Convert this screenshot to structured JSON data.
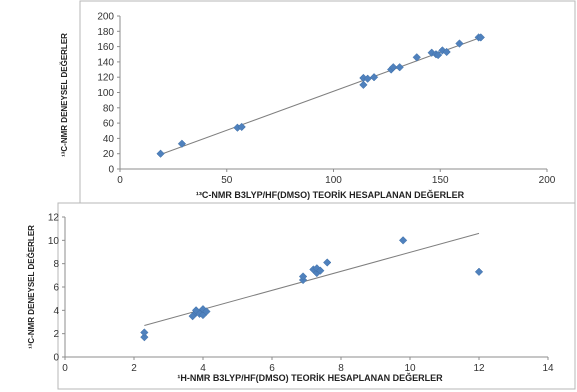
{
  "chart_data": [
    {
      "type": "scatter",
      "title": "",
      "xlabel": "¹³C-NMR B3LYP/HF(DMSO) TEORİK HESAPLANAN DEĞERLER",
      "ylabel": "¹³C-NMR DENEYSEL DEĞERLER",
      "xlim": [
        0,
        200
      ],
      "ylim": [
        0,
        200
      ],
      "x_ticks": [
        0,
        50,
        100,
        150,
        200
      ],
      "y_ticks": [
        0,
        20,
        40,
        60,
        80,
        100,
        120,
        140,
        160,
        180,
        200
      ],
      "grid": false,
      "legend": "none",
      "trendline": {
        "x1": 18,
        "y1": 18,
        "x2": 170,
        "y2": 173
      },
      "series": [
        {
          "x": [
            19,
            29,
            55,
            57,
            114,
            114,
            116,
            119,
            127,
            128,
            131,
            139,
            146,
            148,
            149,
            151,
            153,
            159,
            168,
            169
          ],
          "y": [
            20,
            33,
            54,
            55,
            110,
            119,
            118,
            120,
            130,
            133,
            133,
            146,
            152,
            150,
            149,
            155,
            153,
            164,
            172,
            172
          ]
        }
      ]
    },
    {
      "type": "scatter",
      "title": "",
      "xlabel": "¹H-NMR B3LYP/HF(DMSO) TEORİK HESAPLANAN DEĞERLER",
      "ylabel": "¹³C-NMR DENEYSEL DEĞERLER",
      "xlim": [
        0,
        14
      ],
      "ylim": [
        0,
        12
      ],
      "x_ticks": [
        0,
        2,
        4,
        6,
        8,
        10,
        12,
        14
      ],
      "y_ticks": [
        0,
        2,
        4,
        6,
        8,
        10,
        12
      ],
      "grid": false,
      "legend": "none",
      "trendline": {
        "x1": 2.3,
        "y1": 2.7,
        "x2": 12,
        "y2": 10.6
      },
      "series": [
        {
          "x": [
            2.3,
            2.3,
            3.7,
            3.8,
            3.8,
            3.9,
            4.0,
            4.0,
            4.1,
            6.9,
            6.9,
            7.2,
            7.3,
            7.3,
            7.4,
            7.6,
            9.8,
            12.0
          ],
          "y": [
            1.7,
            2.1,
            3.5,
            3.8,
            4.0,
            3.7,
            3.6,
            4.1,
            3.9,
            6.6,
            6.9,
            7.5,
            7.2,
            7.6,
            7.4,
            8.1,
            10.0,
            7.3
          ]
        }
      ]
    }
  ]
}
